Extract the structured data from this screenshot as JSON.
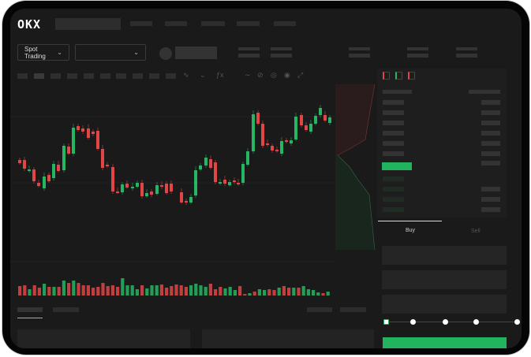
{
  "header": {
    "logo": "OKX"
  },
  "toolbar": {
    "market_type": "Spot Trading",
    "pair_select": ""
  },
  "chart_icons": [
    "candle-type-icon",
    "indicator-icon",
    "settings-icon",
    "line-icon",
    "draw-icon",
    "camera-icon",
    "target-icon",
    "fullscreen-icon"
  ],
  "orderbook": {
    "view_icons": [
      "both-sides-icon",
      "bids-only-icon",
      "asks-only-icon"
    ]
  },
  "order_form": {
    "tabs": [
      {
        "label": "Buy",
        "active": true
      },
      {
        "label": "Sell",
        "active": false
      }
    ],
    "slider_percent": 0,
    "submit_color": "#22b35e"
  },
  "colors": {
    "up": "#26b563",
    "down": "#e04646",
    "background": "#1a1a1a"
  }
}
